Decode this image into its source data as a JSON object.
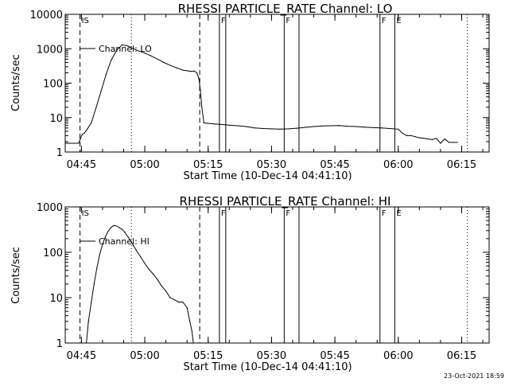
{
  "footer": {
    "timestamp": "23-Oct-2021 18:59"
  },
  "chart_data": [
    {
      "type": "line",
      "title": "RHESSI PARTICLE_RATE Channel: LO",
      "xlabel": "Start Time (10-Dec-14 04:41:10)",
      "ylabel": "Counts/sec",
      "yscale": "log",
      "ylim": [
        1,
        10000
      ],
      "xlim": [
        "04:41:10",
        "06:21:30"
      ],
      "x_ticks": [
        "04:45",
        "05:00",
        "05:15",
        "05:30",
        "05:45",
        "06:00",
        "06:15"
      ],
      "y_ticks": [
        "1",
        "10",
        "100",
        "1000",
        "10000"
      ],
      "legend": {
        "position": "top-left",
        "entries": [
          "Channel: LO"
        ]
      },
      "grid": false,
      "markers": [
        {
          "time": "04:44:40",
          "style": "dashed",
          "label": "IS"
        },
        {
          "time": "04:56:50",
          "style": "dotted",
          "label": ""
        },
        {
          "time": "05:13:00",
          "style": "dashed",
          "label": ""
        },
        {
          "time": "05:17:40",
          "style": "solid",
          "label": "F"
        },
        {
          "time": "05:19:10",
          "style": "solid",
          "label": ""
        },
        {
          "time": "05:33:00",
          "style": "solid",
          "label": "F"
        },
        {
          "time": "05:36:30",
          "style": "solid",
          "label": ""
        },
        {
          "time": "05:55:40",
          "style": "solid",
          "label": "F"
        },
        {
          "time": "05:59:10",
          "style": "solid",
          "label": "E"
        },
        {
          "time": "06:16:20",
          "style": "dotted",
          "label": ""
        }
      ],
      "series": [
        {
          "name": "Channel: LO",
          "x": [
            "04:41:10",
            "04:44:20",
            "04:44:40",
            "04:45:10",
            "04:45:40",
            "04:46:20",
            "04:47:20",
            "04:48:30",
            "04:49:40",
            "04:50:50",
            "04:52:00",
            "04:53:20",
            "04:54:40",
            "04:56:00",
            "04:57:20",
            "04:58:40",
            "05:00:00",
            "05:01:30",
            "05:03:00",
            "05:04:30",
            "05:06:00",
            "05:07:30",
            "05:09:00",
            "05:10:00",
            "05:11:00",
            "05:11:40",
            "05:12:20",
            "05:12:50",
            "05:13:10",
            "05:13:30",
            "05:14:00",
            "05:15:00",
            "05:16:30",
            "05:18:00",
            "05:20:00",
            "05:22:00",
            "05:24:00",
            "05:26:00",
            "05:28:00",
            "05:30:00",
            "05:32:00",
            "05:34:00",
            "05:36:00",
            "05:38:00",
            "05:40:00",
            "05:42:00",
            "05:44:00",
            "05:46:00",
            "05:48:00",
            "05:50:00",
            "05:52:00",
            "05:54:00",
            "05:56:00",
            "05:58:00",
            "06:00:00",
            "06:01:00",
            "06:02:00",
            "06:03:00",
            "06:04:00",
            "06:05:00",
            "06:06:00",
            "06:07:00",
            "06:08:00",
            "06:09:00",
            "06:10:00",
            "06:11:00",
            "06:12:00",
            "06:13:00",
            "06:14:00"
          ],
          "values": [
            1.8,
            1.8,
            2.3,
            3.2,
            3.5,
            4.5,
            7,
            20,
            60,
            180,
            450,
            900,
            1300,
            1200,
            1000,
            850,
            750,
            620,
            500,
            400,
            330,
            280,
            240,
            230,
            220,
            225,
            200,
            130,
            60,
            20,
            7,
            6.8,
            6.5,
            6.3,
            6,
            5.8,
            5.5,
            5,
            4.8,
            4.7,
            4.6,
            4.7,
            4.9,
            5.2,
            5.5,
            5.7,
            5.8,
            5.9,
            5.6,
            5.5,
            5.3,
            5.1,
            5,
            4.8,
            4.6,
            3.5,
            3,
            3,
            2.8,
            2.6,
            2.5,
            2.4,
            2.3,
            2.5,
            1.8,
            2.4,
            1.9,
            1.9,
            1.9
          ]
        }
      ]
    },
    {
      "type": "line",
      "title": "RHESSI PARTICLE_RATE Channel: HI",
      "xlabel": "Start Time (10-Dec-14 04:41:10)",
      "ylabel": "Counts/sec",
      "yscale": "log",
      "ylim": [
        1,
        1000
      ],
      "xlim": [
        "04:41:10",
        "06:21:30"
      ],
      "x_ticks": [
        "04:45",
        "05:00",
        "05:15",
        "05:30",
        "05:45",
        "06:00",
        "06:15"
      ],
      "y_ticks": [
        "1",
        "10",
        "100",
        "1000"
      ],
      "legend": {
        "position": "top-left",
        "entries": [
          "Channel: HI"
        ]
      },
      "grid": false,
      "markers": [
        {
          "time": "04:44:40",
          "style": "dashed",
          "label": "IS"
        },
        {
          "time": "04:56:50",
          "style": "dotted",
          "label": ""
        },
        {
          "time": "05:13:00",
          "style": "dashed",
          "label": ""
        },
        {
          "time": "05:17:40",
          "style": "solid",
          "label": "F"
        },
        {
          "time": "05:19:10",
          "style": "solid",
          "label": ""
        },
        {
          "time": "05:33:00",
          "style": "solid",
          "label": "F"
        },
        {
          "time": "05:36:30",
          "style": "solid",
          "label": ""
        },
        {
          "time": "05:55:40",
          "style": "solid",
          "label": "F"
        },
        {
          "time": "05:59:10",
          "style": "solid",
          "label": "E"
        },
        {
          "time": "06:16:20",
          "style": "dotted",
          "label": ""
        }
      ],
      "series": [
        {
          "name": "Channel: HI",
          "x": [
            "04:46:10",
            "04:46:40",
            "04:47:20",
            "04:48:00",
            "04:48:40",
            "04:49:20",
            "04:50:00",
            "04:50:40",
            "04:51:20",
            "04:52:00",
            "04:52:40",
            "04:53:20",
            "04:54:00",
            "04:54:40",
            "04:55:20",
            "04:56:00",
            "04:56:40",
            "04:57:20",
            "04:58:00",
            "04:59:00",
            "05:00:00",
            "05:01:00",
            "05:02:00",
            "05:03:00",
            "05:04:00",
            "05:05:00",
            "05:06:00",
            "05:07:00",
            "05:08:00",
            "05:09:00",
            "05:10:00",
            "05:10:40",
            "05:11:10",
            "05:11:30"
          ],
          "values": [
            1,
            3,
            8,
            20,
            45,
            90,
            150,
            220,
            290,
            350,
            390,
            380,
            350,
            320,
            270,
            220,
            180,
            140,
            110,
            80,
            57,
            42,
            33,
            25,
            18,
            14,
            10,
            9,
            8,
            8,
            6,
            3,
            1.8,
            1
          ]
        }
      ]
    }
  ]
}
